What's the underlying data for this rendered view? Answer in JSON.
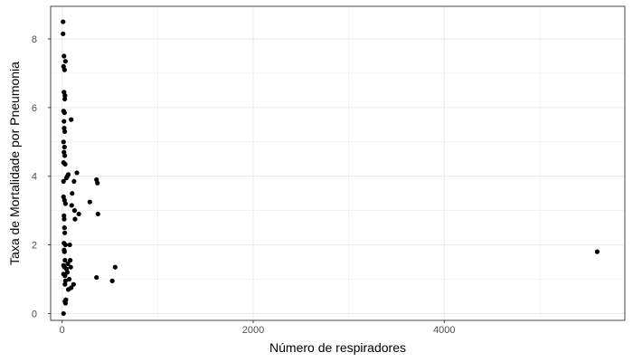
{
  "chart_data": {
    "type": "scatter",
    "title": "",
    "xlabel": "Número de respiradores",
    "ylabel": "Taxa de Mortalidade por Pneumonia",
    "xlim": [
      -120,
      5890
    ],
    "ylim": [
      -0.2,
      8.95
    ],
    "xticks": [
      0,
      2000,
      4000
    ],
    "xtick_labels": [
      "0",
      "2000",
      "4000"
    ],
    "yticks": [
      0,
      2,
      4,
      6,
      8
    ],
    "ytick_labels": [
      "0",
      "2",
      "4",
      "6",
      "8"
    ],
    "x_minor_grid": [
      1000,
      3000,
      5000
    ],
    "y_minor_grid": [
      1,
      3,
      5,
      7
    ],
    "grid": true,
    "legend": "none",
    "colors": {
      "points": "#000000",
      "grid": "#ebebeb",
      "panel_border": "#333333",
      "tick_text": "#4d4d4d"
    },
    "points": [
      {
        "x": 10,
        "y": 8.5
      },
      {
        "x": 10,
        "y": 8.15
      },
      {
        "x": 20,
        "y": 7.5
      },
      {
        "x": 35,
        "y": 7.35
      },
      {
        "x": 15,
        "y": 7.2
      },
      {
        "x": 25,
        "y": 7.1
      },
      {
        "x": 20,
        "y": 6.45
      },
      {
        "x": 30,
        "y": 6.35
      },
      {
        "x": 28,
        "y": 6.25
      },
      {
        "x": 15,
        "y": 5.9
      },
      {
        "x": 25,
        "y": 5.85
      },
      {
        "x": 95,
        "y": 5.65
      },
      {
        "x": 20,
        "y": 5.6
      },
      {
        "x": 22,
        "y": 5.4
      },
      {
        "x": 28,
        "y": 5.3
      },
      {
        "x": 15,
        "y": 5.0
      },
      {
        "x": 25,
        "y": 4.85
      },
      {
        "x": 20,
        "y": 4.7
      },
      {
        "x": 28,
        "y": 4.6
      },
      {
        "x": 15,
        "y": 4.4
      },
      {
        "x": 32,
        "y": 4.35
      },
      {
        "x": 65,
        "y": 4.05
      },
      {
        "x": 55,
        "y": 4.0
      },
      {
        "x": 45,
        "y": 3.95
      },
      {
        "x": 155,
        "y": 4.1
      },
      {
        "x": 360,
        "y": 3.9
      },
      {
        "x": 370,
        "y": 3.8
      },
      {
        "x": 125,
        "y": 3.85
      },
      {
        "x": 15,
        "y": 3.85
      },
      {
        "x": 105,
        "y": 3.5
      },
      {
        "x": 15,
        "y": 3.4
      },
      {
        "x": 25,
        "y": 3.3
      },
      {
        "x": 35,
        "y": 3.2
      },
      {
        "x": 100,
        "y": 3.15
      },
      {
        "x": 290,
        "y": 3.25
      },
      {
        "x": 130,
        "y": 3.0
      },
      {
        "x": 175,
        "y": 2.9
      },
      {
        "x": 375,
        "y": 2.9
      },
      {
        "x": 20,
        "y": 2.85
      },
      {
        "x": 22,
        "y": 2.75
      },
      {
        "x": 135,
        "y": 2.75
      },
      {
        "x": 25,
        "y": 2.5
      },
      {
        "x": 28,
        "y": 2.35
      },
      {
        "x": 20,
        "y": 2.05
      },
      {
        "x": 35,
        "y": 2.0
      },
      {
        "x": 80,
        "y": 2.0
      },
      {
        "x": 22,
        "y": 1.85
      },
      {
        "x": 25,
        "y": 1.8
      },
      {
        "x": 30,
        "y": 1.55
      },
      {
        "x": 85,
        "y": 1.55
      },
      {
        "x": 60,
        "y": 1.45
      },
      {
        "x": 15,
        "y": 1.4
      },
      {
        "x": 25,
        "y": 1.35
      },
      {
        "x": 45,
        "y": 1.3
      },
      {
        "x": 90,
        "y": 1.35
      },
      {
        "x": 555,
        "y": 1.35
      },
      {
        "x": 15,
        "y": 1.15
      },
      {
        "x": 30,
        "y": 1.1
      },
      {
        "x": 55,
        "y": 1.2
      },
      {
        "x": 75,
        "y": 1.0
      },
      {
        "x": 35,
        "y": 0.95
      },
      {
        "x": 360,
        "y": 1.05
      },
      {
        "x": 525,
        "y": 0.95
      },
      {
        "x": 30,
        "y": 0.85
      },
      {
        "x": 120,
        "y": 0.85
      },
      {
        "x": 95,
        "y": 0.75
      },
      {
        "x": 65,
        "y": 0.7
      },
      {
        "x": 40,
        "y": 0.4
      },
      {
        "x": 30,
        "y": 0.35
      },
      {
        "x": 35,
        "y": 0.3
      },
      {
        "x": 15,
        "y": 0.0
      },
      {
        "x": 5600,
        "y": 1.8
      }
    ]
  }
}
